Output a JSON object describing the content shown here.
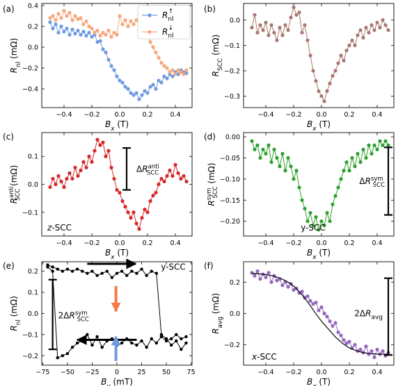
{
  "chart_data": [
    {
      "id": "a",
      "panel_label": "(a)",
      "type": "line",
      "xlabel": "B_x (T)",
      "ylabel": "R_nl (mΩ)",
      "xlim": [
        -0.56,
        0.52
      ],
      "ylim": [
        -0.58,
        0.42
      ],
      "xticks": [
        -0.4,
        -0.2,
        0.0,
        0.2,
        0.4
      ],
      "xtick_labels": [
        "−0.4",
        "−0.2",
        "0.0",
        "0.2",
        "0.4"
      ],
      "yticks": [
        -0.4,
        -0.2,
        0.0,
        0.2,
        0.4
      ],
      "ytick_labels": [
        "−0.4",
        "−0.2",
        "0.0",
        "0.2",
        "0.4"
      ],
      "legend": {
        "placement": "top-right",
        "entries": [
          "R_nl↑",
          "R_nl↓"
        ]
      },
      "series": [
        {
          "name": "R_nl↑",
          "color": "#6f9ae0",
          "x": [
            -0.5,
            -0.48,
            -0.46,
            -0.44,
            -0.42,
            -0.4,
            -0.38,
            -0.36,
            -0.34,
            -0.32,
            -0.3,
            -0.28,
            -0.26,
            -0.24,
            -0.22,
            -0.2,
            -0.18,
            -0.16,
            -0.14,
            -0.12,
            -0.1,
            -0.08,
            -0.06,
            -0.04,
            -0.02,
            0.0,
            0.02,
            0.04,
            0.06,
            0.08,
            0.1,
            0.12,
            0.14,
            0.16,
            0.18,
            0.2,
            0.22,
            0.24,
            0.26,
            0.28,
            0.3,
            0.32,
            0.34,
            0.36,
            0.38,
            0.4,
            0.42,
            0.44,
            0.46,
            0.48
          ],
          "y": [
            0.24,
            0.18,
            0.22,
            0.14,
            0.2,
            0.15,
            0.18,
            0.12,
            0.17,
            0.13,
            0.16,
            0.12,
            0.15,
            0.11,
            0.14,
            0.1,
            0.12,
            0.05,
            0.06,
            -0.02,
            -0.05,
            -0.12,
            -0.18,
            -0.22,
            -0.28,
            -0.32,
            -0.34,
            -0.38,
            -0.4,
            -0.44,
            -0.46,
            -0.44,
            -0.5,
            -0.46,
            -0.42,
            -0.44,
            -0.38,
            -0.36,
            -0.4,
            -0.32,
            -0.34,
            -0.28,
            -0.3,
            -0.26,
            -0.28,
            -0.24,
            -0.26,
            -0.22,
            -0.24,
            -0.25
          ]
        },
        {
          "name": "R_nl↓",
          "color": "#f7a77c",
          "x": [
            -0.5,
            -0.48,
            -0.46,
            -0.44,
            -0.42,
            -0.4,
            -0.38,
            -0.36,
            -0.34,
            -0.32,
            -0.3,
            -0.28,
            -0.26,
            -0.24,
            -0.22,
            -0.2,
            -0.18,
            -0.16,
            -0.14,
            -0.12,
            -0.1,
            -0.08,
            -0.06,
            -0.04,
            -0.02,
            0.0,
            0.02,
            0.04,
            0.06,
            0.08,
            0.1,
            0.12,
            0.14,
            0.16,
            0.18,
            0.2,
            0.22,
            0.24,
            0.26,
            0.28,
            0.3,
            0.32,
            0.34,
            0.36,
            0.38,
            0.4,
            0.42,
            0.44,
            0.46,
            0.48
          ],
          "y": [
            0.28,
            0.3,
            0.26,
            0.32,
            0.28,
            0.35,
            0.3,
            0.33,
            0.26,
            0.3,
            0.27,
            0.28,
            0.22,
            0.25,
            0.2,
            0.18,
            0.14,
            0.16,
            0.11,
            0.14,
            0.12,
            0.16,
            0.1,
            0.14,
            0.12,
            0.3,
            0.22,
            0.26,
            0.2,
            0.25,
            0.22,
            0.26,
            0.2,
            0.18,
            0.14,
            0.12,
            0.05,
            0.0,
            -0.05,
            -0.1,
            -0.15,
            -0.18,
            -0.2,
            -0.24,
            -0.22,
            -0.26,
            -0.22,
            -0.24,
            -0.26,
            -0.22
          ]
        }
      ]
    },
    {
      "id": "b",
      "panel_label": "(b)",
      "type": "line",
      "xlabel": "B_x (T)",
      "ylabel": "R_SCC (mΩ)",
      "xlim": [
        -0.56,
        0.52
      ],
      "ylim": [
        -0.345,
        0.065
      ],
      "xticks": [
        -0.4,
        -0.2,
        0.0,
        0.2,
        0.4
      ],
      "xtick_labels": [
        "−0.4",
        "−0.2",
        "0.0",
        "0.2",
        "0.4"
      ],
      "yticks": [
        0.0,
        -0.1,
        -0.2,
        -0.3
      ],
      "ytick_labels": [
        "0.0",
        "−0.1",
        "−0.2",
        "−0.3"
      ],
      "series": [
        {
          "name": "",
          "color": "#a9776e",
          "x": [
            -0.5,
            -0.48,
            -0.46,
            -0.44,
            -0.42,
            -0.4,
            -0.38,
            -0.36,
            -0.34,
            -0.32,
            -0.3,
            -0.28,
            -0.26,
            -0.24,
            -0.22,
            -0.2,
            -0.18,
            -0.16,
            -0.14,
            -0.12,
            -0.1,
            -0.08,
            -0.06,
            -0.04,
            -0.02,
            0.0,
            0.02,
            0.04,
            0.06,
            0.08,
            0.1,
            0.12,
            0.14,
            0.16,
            0.18,
            0.2,
            0.22,
            0.24,
            0.26,
            0.28,
            0.3,
            0.32,
            0.34,
            0.36,
            0.38,
            0.4,
            0.42,
            0.44,
            0.46,
            0.48
          ],
          "y": [
            -0.03,
            0.02,
            -0.05,
            -0.02,
            -0.04,
            -0.01,
            -0.06,
            -0.02,
            -0.05,
            -0.08,
            -0.03,
            -0.06,
            -0.02,
            -0.04,
            0.01,
            0.05,
            0.02,
            0.03,
            -0.05,
            -0.02,
            -0.08,
            -0.14,
            -0.2,
            -0.24,
            -0.28,
            -0.3,
            -0.32,
            -0.28,
            -0.25,
            -0.22,
            -0.2,
            -0.17,
            -0.14,
            -0.16,
            -0.12,
            -0.1,
            -0.08,
            -0.1,
            -0.06,
            -0.04,
            -0.07,
            -0.03,
            -0.05,
            -0.02,
            -0.04,
            -0.01,
            -0.03,
            0.0,
            -0.02,
            -0.04
          ]
        }
      ]
    },
    {
      "id": "c",
      "panel_label": "(c)",
      "type": "line",
      "xlabel": "B_x (T)",
      "ylabel": "R_SCC^anti (mΩ)",
      "xlim": [
        -0.56,
        0.52
      ],
      "ylim": [
        -0.185,
        0.185
      ],
      "xticks": [
        -0.4,
        -0.2,
        0.0,
        0.2,
        0.4
      ],
      "xtick_labels": [
        "−0.4",
        "−0.2",
        "0.0",
        "0.2",
        "0.4"
      ],
      "yticks": [
        0.1,
        0.0,
        -0.1
      ],
      "ytick_labels": [
        "0.1",
        "0.0",
        "−0.1"
      ],
      "annotations": [
        "ΔR_SCC^anti",
        "z-SCC"
      ],
      "series": [
        {
          "name": "",
          "color": "#d62728",
          "x": [
            -0.5,
            -0.48,
            -0.46,
            -0.44,
            -0.42,
            -0.4,
            -0.38,
            -0.36,
            -0.34,
            -0.32,
            -0.3,
            -0.28,
            -0.26,
            -0.24,
            -0.22,
            -0.2,
            -0.18,
            -0.16,
            -0.14,
            -0.12,
            -0.1,
            -0.08,
            -0.06,
            -0.04,
            -0.02,
            0.0,
            0.02,
            0.04,
            0.06,
            0.08,
            0.1,
            0.12,
            0.14,
            0.16,
            0.18,
            0.2,
            0.22,
            0.24,
            0.26,
            0.28,
            0.3,
            0.32,
            0.34,
            0.36,
            0.38,
            0.4,
            0.42,
            0.44,
            0.46,
            0.48
          ],
          "y": [
            -0.01,
            0.02,
            0.0,
            0.03,
            0.01,
            -0.01,
            0.02,
            0.04,
            0.02,
            0.06,
            0.03,
            0.05,
            0.08,
            0.06,
            0.1,
            0.08,
            0.12,
            0.16,
            0.14,
            0.15,
            0.1,
            0.12,
            0.06,
            0.02,
            -0.02,
            -0.03,
            -0.06,
            -0.08,
            -0.1,
            -0.12,
            -0.1,
            -0.14,
            -0.16,
            -0.12,
            -0.09,
            -0.1,
            -0.06,
            -0.04,
            -0.03,
            0.0,
            0.02,
            0.01,
            0.03,
            0.05,
            0.03,
            0.07,
            0.04,
            0.02,
            0.03,
            0.01
          ]
        }
      ]
    },
    {
      "id": "d",
      "panel_label": "(d)",
      "type": "line",
      "xlabel": "B_x (T)",
      "ylabel": "R_SCC^sym (mΩ)",
      "xlim": [
        -0.56,
        0.52
      ],
      "ylim": [
        -0.235,
        0.01
      ],
      "xticks": [
        -0.4,
        -0.2,
        0.0,
        0.2,
        0.4
      ],
      "xtick_labels": [
        "−0.4",
        "−0.2",
        "0.0",
        "0.2",
        "0.4"
      ],
      "yticks": [
        0.0,
        -0.05,
        -0.1,
        -0.15,
        -0.2
      ],
      "ytick_labels": [
        "0.00",
        "−0.05",
        "−0.10",
        "−0.15",
        "−0.20"
      ],
      "annotations": [
        "ΔR_SCC^sym",
        "y-SCC"
      ],
      "series": [
        {
          "name": "",
          "color": "#2ca02c",
          "x": [
            -0.5,
            -0.48,
            -0.46,
            -0.44,
            -0.42,
            -0.4,
            -0.38,
            -0.36,
            -0.34,
            -0.32,
            -0.3,
            -0.28,
            -0.26,
            -0.24,
            -0.22,
            -0.2,
            -0.18,
            -0.16,
            -0.14,
            -0.12,
            -0.1,
            -0.08,
            -0.06,
            -0.04,
            -0.02,
            0.0,
            0.02,
            0.04,
            0.06,
            0.08,
            0.1,
            0.12,
            0.14,
            0.16,
            0.18,
            0.2,
            0.22,
            0.24,
            0.26,
            0.28,
            0.3,
            0.32,
            0.34,
            0.36,
            0.38,
            0.4,
            0.42,
            0.44,
            0.46,
            0.48
          ],
          "y": [
            -0.01,
            -0.03,
            -0.02,
            -0.05,
            -0.03,
            -0.04,
            -0.02,
            -0.06,
            -0.03,
            -0.05,
            -0.07,
            -0.04,
            -0.08,
            -0.05,
            -0.07,
            -0.1,
            -0.08,
            -0.12,
            -0.15,
            -0.17,
            -0.2,
            -0.18,
            -0.21,
            -0.19,
            -0.22,
            -0.2,
            -0.21,
            -0.18,
            -0.2,
            -0.16,
            -0.14,
            -0.12,
            -0.1,
            -0.08,
            -0.06,
            -0.08,
            -0.05,
            -0.07,
            -0.04,
            -0.06,
            -0.03,
            -0.05,
            -0.02,
            -0.04,
            -0.02,
            -0.03,
            -0.01,
            -0.02,
            -0.01,
            -0.02
          ]
        }
      ]
    },
    {
      "id": "e",
      "panel_label": "(e)",
      "type": "line",
      "xlabel": "B_y (mT)",
      "ylabel": "R_nl (mΩ)",
      "xlim": [
        -76,
        76
      ],
      "ylim": [
        -0.245,
        0.245
      ],
      "xticks": [
        -75,
        -50,
        -25,
        0,
        25,
        50,
        75
      ],
      "xtick_labels": [
        "−75",
        "−50",
        "−25",
        "0",
        "25",
        "50",
        "75"
      ],
      "yticks": [
        0.2,
        0.1,
        0.0,
        -0.1,
        -0.2
      ],
      "ytick_labels": [
        "0.2",
        "0.1",
        "0.0",
        "−0.1",
        "−0.2"
      ],
      "annotations": [
        "y-SCC",
        "2ΔR_SCC^sym"
      ],
      "series": [
        {
          "name": "",
          "color": "#000000",
          "x": [
            -70,
            -65,
            -60,
            -55,
            -50,
            -45,
            -40,
            -35,
            -30,
            -25,
            -20,
            -15,
            -10,
            -5,
            0,
            5,
            10,
            15,
            20,
            25,
            30,
            35,
            40,
            45,
            50,
            55,
            60,
            65,
            70
          ],
          "y": [
            0.23,
            0.22,
            0.21,
            0.2,
            0.21,
            0.2,
            0.21,
            0.2,
            0.19,
            0.2,
            0.18,
            0.19,
            0.2,
            0.17,
            0.19,
            0.2,
            0.18,
            0.2,
            0.19,
            0.21,
            0.18,
            0.2,
            0.19,
            -0.1,
            -0.12,
            -0.15,
            -0.13,
            -0.17,
            -0.14
          ]
        },
        {
          "name": "",
          "color": "#000000",
          "x": [
            -70,
            -65,
            -60,
            -55,
            -50,
            -45,
            -40,
            -35,
            -30,
            -25,
            -20,
            -15,
            -10,
            -5,
            0,
            5,
            10,
            15,
            20,
            25,
            30,
            35,
            40,
            45,
            50,
            55,
            60,
            65,
            70
          ],
          "y": [
            0.22,
            0.2,
            -0.21,
            -0.2,
            -0.19,
            -0.16,
            -0.14,
            -0.13,
            -0.1,
            -0.15,
            -0.11,
            -0.16,
            -0.13,
            -0.12,
            -0.15,
            -0.14,
            -0.12,
            -0.14,
            -0.15,
            -0.13,
            -0.16,
            -0.12,
            -0.14,
            -0.11,
            -0.13,
            -0.12,
            -0.1,
            -0.12,
            -0.11
          ]
        }
      ]
    },
    {
      "id": "f",
      "panel_label": "(f)",
      "type": "line",
      "xlabel": "B_x (T)",
      "ylabel": "R_avg (mΩ)",
      "xlim": [
        -0.56,
        0.52
      ],
      "ylim": [
        -0.33,
        0.33
      ],
      "xticks": [
        -0.4,
        -0.2,
        0.0,
        0.2,
        0.4
      ],
      "xtick_labels": [
        "−0.4",
        "−0.2",
        "0.0",
        "0.2",
        "0.4"
      ],
      "yticks": [
        0.2,
        0.0,
        -0.2
      ],
      "ytick_labels": [
        "0.2",
        "0.0",
        "−0.2"
      ],
      "annotations": [
        "2ΔR_avg",
        "x-SCC"
      ],
      "series": [
        {
          "name": "",
          "color": "#9467bd",
          "x": [
            -0.5,
            -0.48,
            -0.46,
            -0.44,
            -0.42,
            -0.4,
            -0.38,
            -0.36,
            -0.34,
            -0.32,
            -0.3,
            -0.28,
            -0.26,
            -0.24,
            -0.22,
            -0.2,
            -0.18,
            -0.16,
            -0.14,
            -0.12,
            -0.1,
            -0.08,
            -0.06,
            -0.04,
            -0.02,
            0.0,
            0.02,
            0.04,
            0.06,
            0.08,
            0.1,
            0.12,
            0.14,
            0.16,
            0.18,
            0.2,
            0.22,
            0.24,
            0.26,
            0.28,
            0.3,
            0.32,
            0.34,
            0.36,
            0.38,
            0.4,
            0.42,
            0.44,
            0.46,
            0.48
          ],
          "y": [
            0.26,
            0.24,
            0.27,
            0.22,
            0.25,
            0.23,
            0.26,
            0.2,
            0.24,
            0.21,
            0.22,
            0.18,
            0.2,
            0.17,
            0.19,
            0.15,
            0.16,
            0.13,
            0.14,
            0.1,
            0.11,
            0.08,
            0.06,
            0.07,
            0.02,
            0.04,
            0.0,
            -0.02,
            -0.05,
            -0.08,
            -0.06,
            -0.12,
            -0.14,
            -0.17,
            -0.19,
            -0.18,
            -0.22,
            -0.2,
            -0.24,
            -0.23,
            -0.25,
            -0.21,
            -0.26,
            -0.24,
            -0.28,
            -0.23,
            -0.26,
            -0.24,
            -0.27,
            -0.25
          ]
        },
        {
          "name": "",
          "color": "#000000",
          "kind": "fit",
          "x": [
            -0.5,
            -0.45,
            -0.4,
            -0.35,
            -0.3,
            -0.25,
            -0.2,
            -0.15,
            -0.1,
            -0.05,
            0.0,
            0.05,
            0.1,
            0.15,
            0.2,
            0.25,
            0.3,
            0.35,
            0.4,
            0.45,
            0.48
          ],
          "y": [
            0.255,
            0.253,
            0.248,
            0.24,
            0.226,
            0.205,
            0.175,
            0.13,
            0.075,
            0.01,
            -0.05,
            -0.1,
            -0.15,
            -0.19,
            -0.22,
            -0.238,
            -0.25,
            -0.256,
            -0.259,
            -0.26,
            -0.26
          ]
        }
      ]
    }
  ]
}
